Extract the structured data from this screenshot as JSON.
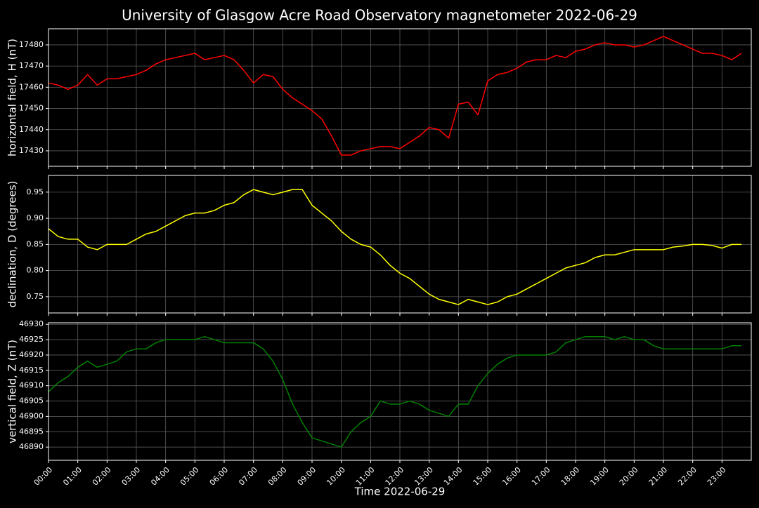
{
  "title": "University of Glasgow Acre Road Observatory magnetometer 2022-06-29",
  "chart_data": [
    {
      "type": "line",
      "ylabel": "horizontal field, H (nT)",
      "color": "#ff0000",
      "grid": true,
      "xlim": [
        "00:00",
        "24:00"
      ],
      "xticks": [
        "00:00",
        "01:00",
        "02:00",
        "03:00",
        "04:00",
        "05:00",
        "06:00",
        "07:00",
        "08:00",
        "09:00",
        "10:00",
        "11:00",
        "12:00",
        "13:00",
        "14:00",
        "15:00",
        "16:00",
        "17:00",
        "18:00",
        "19:00",
        "20:00",
        "21:00",
        "22:00",
        "23:00"
      ],
      "ylim": [
        17422.7,
        17487.6
      ],
      "yticks": [
        17430,
        17440,
        17450,
        17460,
        17470,
        17480
      ],
      "x": [
        "00:00",
        "00:20",
        "00:40",
        "01:00",
        "01:20",
        "01:40",
        "02:00",
        "02:20",
        "02:40",
        "03:00",
        "03:20",
        "03:40",
        "04:00",
        "04:20",
        "04:40",
        "05:00",
        "05:20",
        "05:40",
        "06:00",
        "06:20",
        "06:40",
        "07:00",
        "07:20",
        "07:40",
        "08:00",
        "08:20",
        "08:40",
        "09:00",
        "09:20",
        "09:40",
        "10:00",
        "10:20",
        "10:40",
        "11:00",
        "11:20",
        "11:40",
        "12:00",
        "12:20",
        "12:40",
        "13:00",
        "13:20",
        "13:40",
        "14:00",
        "14:20",
        "14:40",
        "15:00",
        "15:20",
        "15:40",
        "16:00",
        "16:20",
        "16:40",
        "17:00",
        "17:20",
        "17:40",
        "18:00",
        "18:20",
        "18:40",
        "19:00",
        "19:20",
        "19:40",
        "20:00",
        "20:20",
        "20:40",
        "21:00",
        "21:20",
        "21:40",
        "22:00",
        "22:20",
        "22:40",
        "23:00",
        "23:20",
        "23:40"
      ],
      "values": [
        17462,
        17461,
        17459,
        17461,
        17466,
        17461,
        17464,
        17464,
        17465,
        17466,
        17468,
        17471,
        17473,
        17474,
        17475,
        17476,
        17473,
        17474,
        17475,
        17473,
        17468,
        17462,
        17466,
        17465,
        17459,
        17455,
        17452,
        17449,
        17445,
        17437,
        17428,
        17428,
        17430,
        17431,
        17432,
        17432,
        17431,
        17434,
        17437,
        17441,
        17440,
        17436,
        17452,
        17453,
        17447,
        17463,
        17466,
        17467,
        17469,
        17472,
        17473,
        17473,
        17475,
        17474,
        17477,
        17478,
        17480,
        17481,
        17480,
        17480,
        17479,
        17480,
        17482,
        17484,
        17482,
        17480,
        17478,
        17476,
        17476,
        17475,
        17473,
        17476
      ]
    },
    {
      "type": "line",
      "ylabel": "declination, D (degrees)",
      "color": "#ffff00",
      "grid": true,
      "xlim": [
        "00:00",
        "24:00"
      ],
      "xticks": [
        "00:00",
        "01:00",
        "02:00",
        "03:00",
        "04:00",
        "05:00",
        "06:00",
        "07:00",
        "08:00",
        "09:00",
        "10:00",
        "11:00",
        "12:00",
        "13:00",
        "14:00",
        "15:00",
        "16:00",
        "17:00",
        "18:00",
        "19:00",
        "20:00",
        "21:00",
        "22:00",
        "23:00"
      ],
      "ylim": [
        0.719,
        0.982
      ],
      "yticks": [
        0.75,
        {
          "value": 0.8,
          "label": "0.80"
        },
        0.85,
        {
          "value": 0.9,
          "label": "0.90"
        },
        0.95
      ],
      "x": [
        "00:00",
        "00:20",
        "00:40",
        "01:00",
        "01:20",
        "01:40",
        "02:00",
        "02:20",
        "02:40",
        "03:00",
        "03:20",
        "03:40",
        "04:00",
        "04:20",
        "04:40",
        "05:00",
        "05:20",
        "05:40",
        "06:00",
        "06:20",
        "06:40",
        "07:00",
        "07:20",
        "07:40",
        "08:00",
        "08:20",
        "08:40",
        "09:00",
        "09:20",
        "09:40",
        "10:00",
        "10:20",
        "10:40",
        "11:00",
        "11:20",
        "11:40",
        "12:00",
        "12:20",
        "12:40",
        "13:00",
        "13:20",
        "13:40",
        "14:00",
        "14:20",
        "14:40",
        "15:00",
        "15:20",
        "15:40",
        "16:00",
        "16:20",
        "16:40",
        "17:00",
        "17:20",
        "17:40",
        "18:00",
        "18:20",
        "18:40",
        "19:00",
        "19:20",
        "19:40",
        "20:00",
        "20:20",
        "20:40",
        "21:00",
        "21:20",
        "21:40",
        "22:00",
        "22:20",
        "22:40",
        "23:00",
        "23:20",
        "23:40"
      ],
      "values": [
        0.88,
        0.865,
        0.86,
        0.86,
        0.845,
        0.84,
        0.85,
        0.85,
        0.85,
        0.86,
        0.87,
        0.875,
        0.885,
        0.895,
        0.905,
        0.91,
        0.91,
        0.915,
        0.925,
        0.93,
        0.945,
        0.955,
        0.95,
        0.945,
        0.95,
        0.955,
        0.955,
        0.925,
        0.91,
        0.895,
        0.875,
        0.86,
        0.85,
        0.845,
        0.83,
        0.81,
        0.795,
        0.785,
        0.77,
        0.755,
        0.745,
        0.74,
        0.735,
        0.745,
        0.74,
        0.735,
        0.74,
        0.75,
        0.755,
        0.765,
        0.775,
        0.785,
        0.795,
        0.805,
        0.81,
        0.815,
        0.825,
        0.83,
        0.83,
        0.835,
        0.84,
        0.84,
        0.84,
        0.84,
        0.845,
        0.847,
        0.85,
        0.85,
        0.848,
        0.843,
        0.85,
        0.85
      ]
    },
    {
      "type": "line",
      "ylabel": "vertical field, Z (nT)",
      "xlabel": "Time 2022-06-29",
      "color": "#008000",
      "grid": true,
      "xlim": [
        "00:00",
        "24:00"
      ],
      "xticks": [
        "00:00",
        "01:00",
        "02:00",
        "03:00",
        "04:00",
        "05:00",
        "06:00",
        "07:00",
        "08:00",
        "09:00",
        "10:00",
        "11:00",
        "12:00",
        "13:00",
        "14:00",
        "15:00",
        "16:00",
        "17:00",
        "18:00",
        "19:00",
        "20:00",
        "21:00",
        "22:00",
        "23:00"
      ],
      "ylim": [
        46885.7,
        46930.5
      ],
      "yticks": [
        46890,
        46895,
        46900,
        46905,
        46910,
        46915,
        46920,
        46925,
        46930
      ],
      "x": [
        "00:00",
        "00:20",
        "00:40",
        "01:00",
        "01:20",
        "01:40",
        "02:00",
        "02:20",
        "02:40",
        "03:00",
        "03:20",
        "03:40",
        "04:00",
        "04:20",
        "04:40",
        "05:00",
        "05:20",
        "05:40",
        "06:00",
        "06:20",
        "06:40",
        "07:00",
        "07:20",
        "07:40",
        "08:00",
        "08:20",
        "08:40",
        "09:00",
        "09:20",
        "09:40",
        "10:00",
        "10:20",
        "10:40",
        "11:00",
        "11:20",
        "11:40",
        "12:00",
        "12:20",
        "12:40",
        "13:00",
        "13:20",
        "13:40",
        "14:00",
        "14:20",
        "14:40",
        "15:00",
        "15:20",
        "15:40",
        "16:00",
        "16:20",
        "16:40",
        "17:00",
        "17:20",
        "17:40",
        "18:00",
        "18:20",
        "18:40",
        "19:00",
        "19:20",
        "19:40",
        "20:00",
        "20:20",
        "20:40",
        "21:00",
        "21:20",
        "21:40",
        "22:00",
        "22:20",
        "22:40",
        "23:00",
        "23:20",
        "23:40"
      ],
      "values": [
        46908,
        46911,
        46913,
        46916,
        46918,
        46916,
        46917,
        46918,
        46921,
        46922,
        46922,
        46924,
        46925,
        46925,
        46925,
        46925,
        46926,
        46925,
        46924,
        46924,
        46924,
        46924,
        46922,
        46918,
        46912,
        46904,
        46898,
        46893,
        46892,
        46891,
        46890,
        46895,
        46898,
        46900,
        46905,
        46904,
        46904,
        46905,
        46904,
        46902,
        46901,
        46900,
        46904,
        46904,
        46910,
        46914,
        46917,
        46919,
        46920,
        46920,
        46920,
        46920,
        46921,
        46924,
        46925,
        46926,
        46926,
        46926,
        46925,
        46926,
        46925,
        46925,
        46923,
        46922,
        46922,
        46922,
        46922,
        46922,
        46922,
        46922,
        46923,
        46923
      ]
    }
  ]
}
